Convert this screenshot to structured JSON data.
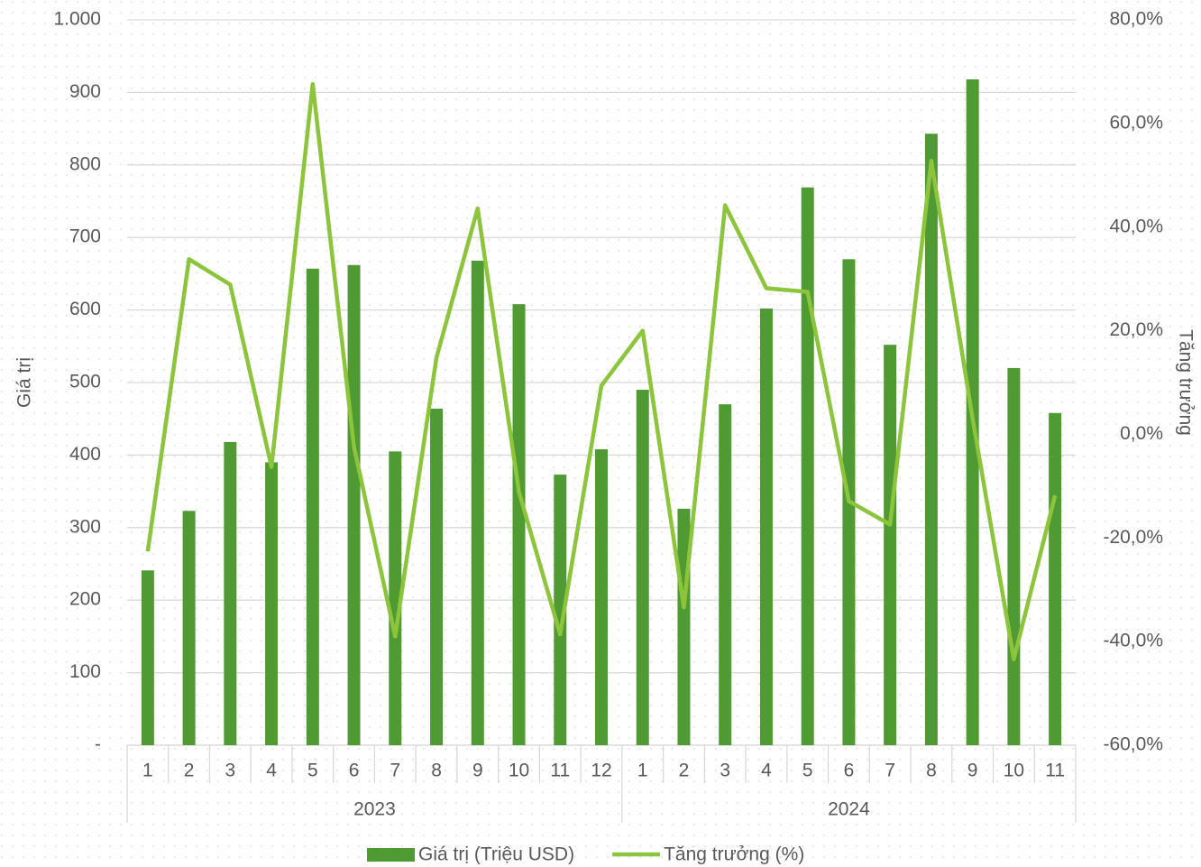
{
  "chart_data": {
    "type": "bar_line",
    "groups": [
      {
        "name": "2023",
        "categories": [
          "1",
          "2",
          "3",
          "4",
          "5",
          "6",
          "7",
          "8",
          "9",
          "10",
          "11",
          "12"
        ]
      },
      {
        "name": "2024",
        "categories": [
          "1",
          "2",
          "3",
          "4",
          "5",
          "6",
          "7",
          "8",
          "9",
          "10",
          "11"
        ]
      }
    ],
    "series": [
      {
        "name": "Giá trị (Triệu USD)",
        "type": "bar",
        "color": "#4f9a32",
        "values": [
          241,
          323,
          418,
          390,
          657,
          662,
          405,
          464,
          668,
          608,
          373,
          408,
          490,
          326,
          470,
          602,
          769,
          670,
          552,
          843,
          918,
          520,
          458
        ]
      },
      {
        "name": "Tăng trưởng (%)",
        "type": "line",
        "axis": "y2",
        "color": "#8cc43c",
        "values": [
          -22.6,
          33.8,
          28.9,
          -6.3,
          67.6,
          -2.4,
          -39.0,
          14.8,
          43.6,
          -11.1,
          -38.6,
          9.4,
          20.0,
          -33.4,
          44.2,
          28.2,
          27.5,
          -12.9,
          -17.4,
          52.8,
          3.1,
          -43.4,
          -11.8
        ]
      }
    ],
    "ylabel": "Giá trị",
    "y2label": "Tăng trưởng",
    "ylim": [
      0,
      1000
    ],
    "yticks": [
      {
        "value": 0,
        "label": "-"
      },
      100,
      200,
      300,
      400,
      500,
      600,
      700,
      800,
      900,
      {
        "value": 1000,
        "label": "1.000"
      }
    ],
    "y2lim": [
      -60,
      80
    ],
    "y2ticks": [
      {
        "value": -60,
        "label": "-60,0%"
      },
      {
        "value": -40,
        "label": "-40,0%"
      },
      {
        "value": -20,
        "label": "-20,0%"
      },
      {
        "value": 0,
        "label": "0,0%"
      },
      {
        "value": 20,
        "label": "20,0%"
      },
      {
        "value": 40,
        "label": "40,0%"
      },
      {
        "value": 60,
        "label": "60,0%"
      },
      {
        "value": 80,
        "label": "80,0%"
      }
    ],
    "grid": true,
    "legend": "bottom"
  }
}
